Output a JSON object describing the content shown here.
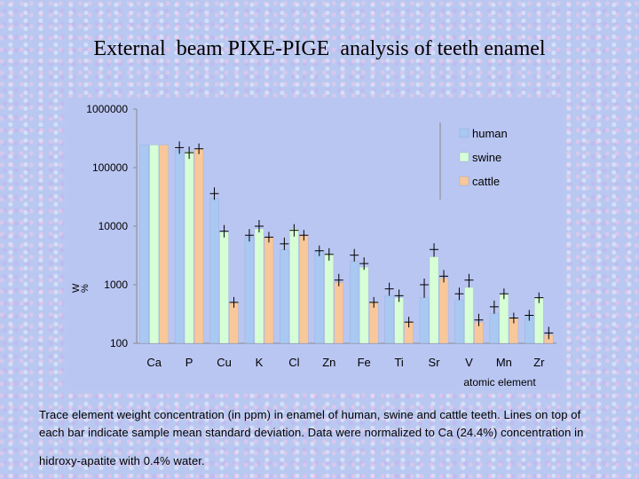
{
  "title": "External  beam PIXE-PIGE  analysis of teeth enamel",
  "caption": {
    "line1": "Trace element weight concentration (in ppm) in enamel of human, swine and cattle teeth. Lines on top of",
    "line2": "each bar indicate sample mean standard deviation. Data were normalized to Ca (24.4%) concentration in",
    "line3": "hidroxy-apatite with 0.4% water."
  },
  "colors": {
    "human": "#a9c8f2",
    "swine": "#d6ffd6",
    "cattle": "#f8c89a",
    "axis": "#888888"
  },
  "chart_data": {
    "type": "bar",
    "yscale": "log",
    "ylim": [
      100,
      1000000
    ],
    "yticks": [
      100,
      1000,
      10000,
      100000,
      1000000
    ],
    "ytick_labels": [
      "100",
      "1000",
      "10000",
      "100000",
      "1000000"
    ],
    "ylabel": "W\n%",
    "xlabel": "atomic element",
    "categories": [
      "Ca",
      "P",
      "Cu",
      "K",
      "Cl",
      "Zn",
      "Fe",
      "Ti",
      "Sr",
      "V",
      "Mn",
      "Zr"
    ],
    "series": [
      {
        "name": "human",
        "values": [
          244000,
          200000,
          30000,
          6500,
          4000,
          3800,
          2500,
          650,
          600,
          550,
          320,
          300
        ],
        "err_top": [
          244000,
          220000,
          36000,
          7000,
          5000,
          3800,
          3200,
          850,
          1000,
          700,
          420,
          300
        ]
      },
      {
        "name": "swine",
        "values": [
          244000,
          190000,
          8000,
          9000,
          9000,
          3400,
          2000,
          600,
          3000,
          900,
          700,
          600
        ],
        "err_top": [
          244000,
          180000,
          8200,
          10000,
          8500,
          3300,
          2300,
          650,
          4000,
          1200,
          700,
          600
        ]
      },
      {
        "name": "cattle",
        "values": [
          244000,
          210000,
          500,
          6500,
          7000,
          1100,
          500,
          230,
          1300,
          230,
          270,
          140
        ],
        "err_top": [
          244000,
          210000,
          500,
          6500,
          7000,
          1200,
          500,
          230,
          1400,
          250,
          270,
          150
        ]
      }
    ],
    "legend": {
      "position": "top-right",
      "entries": [
        "human",
        "swine",
        "cattle"
      ]
    }
  }
}
